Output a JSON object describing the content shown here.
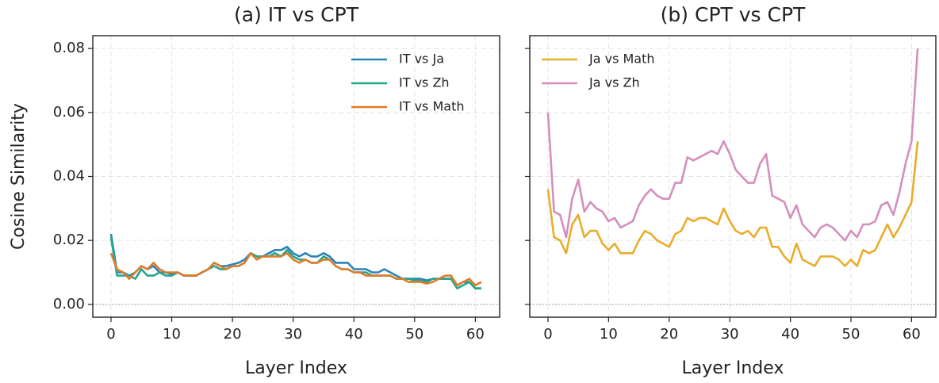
{
  "chart_data": [
    {
      "type": "line",
      "title": "(a) IT vs CPT",
      "xlabel": "Layer Index",
      "ylabel": "Cosine Similarity",
      "x": [
        0,
        1,
        2,
        3,
        4,
        5,
        6,
        7,
        8,
        9,
        10,
        11,
        12,
        13,
        14,
        15,
        16,
        17,
        18,
        19,
        20,
        21,
        22,
        23,
        24,
        25,
        26,
        27,
        28,
        29,
        30,
        31,
        32,
        33,
        34,
        35,
        36,
        37,
        38,
        39,
        40,
        41,
        42,
        43,
        44,
        45,
        46,
        47,
        48,
        49,
        50,
        51,
        52,
        53,
        54,
        55,
        56,
        57,
        58,
        59,
        60,
        61
      ],
      "xlim": [
        -3,
        64
      ],
      "xticks": [
        0,
        10,
        20,
        30,
        40,
        50,
        60
      ],
      "ylim": [
        -0.004,
        0.084
      ],
      "yticks": [
        {
          "value": 0,
          "label": "0.00"
        },
        {
          "value": 0.02,
          "label": "0.02"
        },
        {
          "value": 0.04,
          "label": "0.04"
        },
        {
          "value": 0.06,
          "label": "0.06"
        },
        {
          "value": 0.08,
          "label": "0.08"
        }
      ],
      "show_ytick_labels": true,
      "grid": true,
      "legend": "upper right",
      "series": [
        {
          "name": "IT vs Ja",
          "color": "#2b83ba",
          "values": [
            0.022,
            0.01,
            0.01,
            0.009,
            0.01,
            0.012,
            0.011,
            0.012,
            0.01,
            0.01,
            0.0095,
            0.01,
            0.009,
            0.009,
            0.009,
            0.01,
            0.011,
            0.013,
            0.012,
            0.012,
            0.0125,
            0.013,
            0.014,
            0.016,
            0.015,
            0.015,
            0.016,
            0.017,
            0.017,
            0.018,
            0.016,
            0.015,
            0.016,
            0.015,
            0.015,
            0.016,
            0.015,
            0.013,
            0.013,
            0.013,
            0.011,
            0.011,
            0.011,
            0.01,
            0.01,
            0.011,
            0.01,
            0.009,
            0.008,
            0.008,
            0.008,
            0.008,
            0.0075,
            0.008,
            0.008,
            0.008,
            0.008,
            0.006,
            0.007,
            0.007,
            0.005,
            0.005
          ]
        },
        {
          "name": "IT vs Zh",
          "color": "#26a68a",
          "values": [
            0.021,
            0.009,
            0.009,
            0.009,
            0.008,
            0.011,
            0.009,
            0.009,
            0.01,
            0.009,
            0.009,
            0.01,
            0.009,
            0.009,
            0.009,
            0.01,
            0.011,
            0.012,
            0.011,
            0.011,
            0.012,
            0.012,
            0.013,
            0.016,
            0.015,
            0.015,
            0.015,
            0.016,
            0.015,
            0.017,
            0.015,
            0.014,
            0.014,
            0.013,
            0.013,
            0.015,
            0.014,
            0.012,
            0.011,
            0.011,
            0.01,
            0.01,
            0.01,
            0.009,
            0.009,
            0.009,
            0.009,
            0.008,
            0.008,
            0.008,
            0.0075,
            0.0075,
            0.007,
            0.008,
            0.008,
            0.008,
            0.008,
            0.005,
            0.006,
            0.007,
            0.005,
            0.005
          ]
        },
        {
          "name": "IT vs Math",
          "color": "#e07b2a",
          "values": [
            0.016,
            0.011,
            0.01,
            0.008,
            0.01,
            0.012,
            0.011,
            0.013,
            0.011,
            0.01,
            0.01,
            0.01,
            0.009,
            0.009,
            0.009,
            0.01,
            0.011,
            0.013,
            0.012,
            0.011,
            0.012,
            0.012,
            0.013,
            0.016,
            0.014,
            0.015,
            0.015,
            0.015,
            0.015,
            0.016,
            0.014,
            0.013,
            0.014,
            0.013,
            0.013,
            0.014,
            0.014,
            0.012,
            0.011,
            0.011,
            0.01,
            0.01,
            0.009,
            0.009,
            0.009,
            0.009,
            0.009,
            0.008,
            0.008,
            0.007,
            0.007,
            0.007,
            0.0065,
            0.007,
            0.008,
            0.009,
            0.009,
            0.006,
            0.007,
            0.008,
            0.006,
            0.007
          ]
        }
      ]
    },
    {
      "type": "line",
      "title": "(b) CPT vs CPT",
      "xlabel": "Layer Index",
      "x": [
        0,
        1,
        2,
        3,
        4,
        5,
        6,
        7,
        8,
        9,
        10,
        11,
        12,
        13,
        14,
        15,
        16,
        17,
        18,
        19,
        20,
        21,
        22,
        23,
        24,
        25,
        26,
        27,
        28,
        29,
        30,
        31,
        32,
        33,
        34,
        35,
        36,
        37,
        38,
        39,
        40,
        41,
        42,
        43,
        44,
        45,
        46,
        47,
        48,
        49,
        50,
        51,
        52,
        53,
        54,
        55,
        56,
        57,
        58,
        59,
        60,
        61
      ],
      "xlim": [
        -3,
        64
      ],
      "xticks": [
        0,
        10,
        20,
        30,
        40,
        50,
        60
      ],
      "ylim": [
        -0.004,
        0.084
      ],
      "yticks": [
        0,
        0.02,
        0.04,
        0.06,
        0.08
      ],
      "show_ytick_labels": false,
      "grid": true,
      "legend": "upper left",
      "series": [
        {
          "name": "Ja vs Math",
          "color": "#e8ad2c",
          "values": [
            0.036,
            0.021,
            0.02,
            0.016,
            0.025,
            0.028,
            0.021,
            0.023,
            0.023,
            0.019,
            0.017,
            0.019,
            0.016,
            0.016,
            0.016,
            0.02,
            0.023,
            0.022,
            0.02,
            0.019,
            0.018,
            0.022,
            0.023,
            0.027,
            0.026,
            0.027,
            0.027,
            0.026,
            0.025,
            0.03,
            0.026,
            0.023,
            0.022,
            0.023,
            0.021,
            0.024,
            0.024,
            0.018,
            0.018,
            0.015,
            0.013,
            0.019,
            0.014,
            0.013,
            0.012,
            0.015,
            0.015,
            0.015,
            0.014,
            0.012,
            0.014,
            0.012,
            0.017,
            0.016,
            0.017,
            0.021,
            0.025,
            0.021,
            0.024,
            0.028,
            0.032,
            0.051
          ]
        },
        {
          "name": "Ja vs Zh",
          "color": "#d48fbd",
          "values": [
            0.06,
            0.029,
            0.028,
            0.021,
            0.033,
            0.039,
            0.029,
            0.032,
            0.03,
            0.029,
            0.026,
            0.027,
            0.024,
            0.025,
            0.026,
            0.031,
            0.034,
            0.036,
            0.034,
            0.033,
            0.033,
            0.038,
            0.038,
            0.046,
            0.045,
            0.046,
            0.047,
            0.048,
            0.047,
            0.051,
            0.047,
            0.042,
            0.04,
            0.038,
            0.038,
            0.044,
            0.047,
            0.034,
            0.033,
            0.032,
            0.027,
            0.031,
            0.025,
            0.023,
            0.021,
            0.024,
            0.025,
            0.024,
            0.022,
            0.02,
            0.023,
            0.021,
            0.025,
            0.025,
            0.026,
            0.031,
            0.032,
            0.028,
            0.035,
            0.044,
            0.051,
            0.08
          ]
        }
      ]
    }
  ]
}
